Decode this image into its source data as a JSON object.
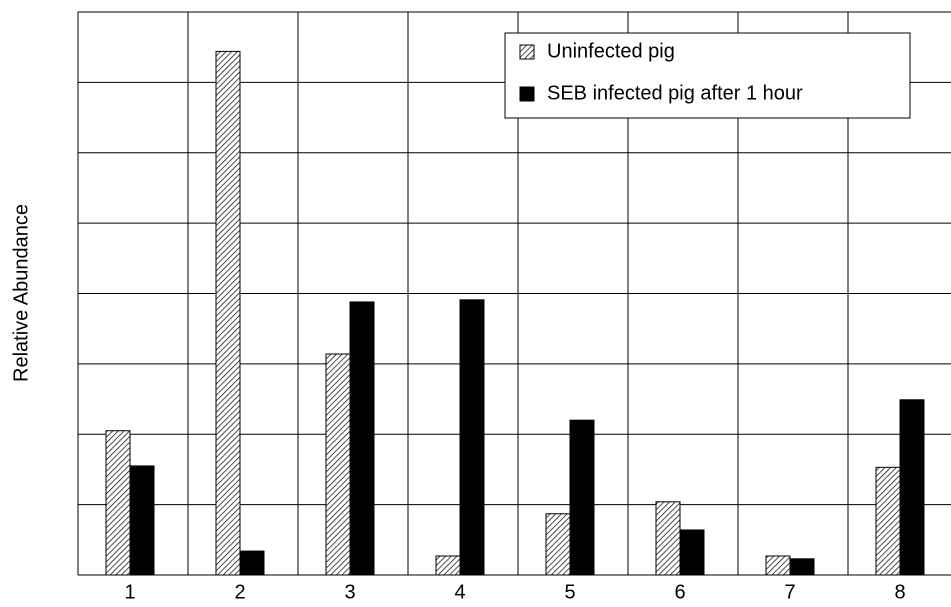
{
  "chart_data": {
    "type": "bar",
    "y_label": "Relative Abundance",
    "categories": [
      "1",
      "2",
      "3",
      "4",
      "5",
      "6",
      "7",
      "8"
    ],
    "series": [
      {
        "name": "Uninfected pig",
        "color": "#000000",
        "fill": "hatch",
        "values": [
          2.05,
          7.44,
          3.14,
          0.27,
          0.87,
          1.04,
          0.27,
          1.53
        ]
      },
      {
        "name": "SEB infected pig after 1 hour",
        "color": "#000000",
        "fill": "solid",
        "values": [
          1.55,
          0.34,
          3.88,
          3.91,
          2.2,
          0.64,
          0.23,
          2.49
        ]
      }
    ],
    "ylim": [
      0,
      8
    ],
    "yticks": [
      0,
      1,
      2,
      3,
      4,
      5,
      6,
      7,
      8
    ],
    "grid": true,
    "legend": "upper right"
  }
}
